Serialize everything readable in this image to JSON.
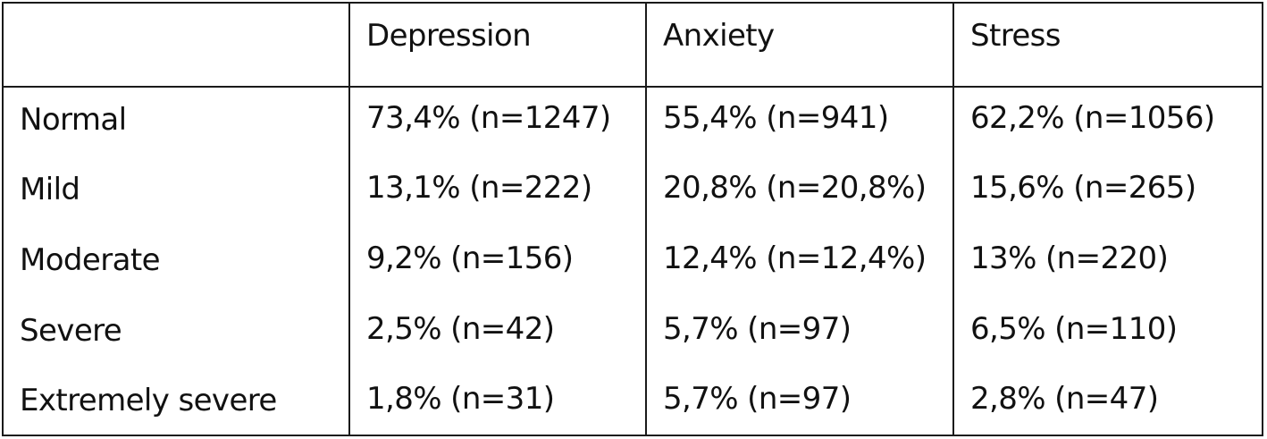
{
  "table": {
    "headers": [
      "",
      "Depression",
      "Anxiety",
      "Stress"
    ],
    "rows": [
      {
        "label": "Normal",
        "depression": "73,4% (n=1247)",
        "anxiety": "55,4% (n=941)",
        "stress": "62,2% (n=1056)"
      },
      {
        "label": "Mild",
        "depression": "13,1% (n=222)",
        "anxiety": "20,8% (n=20,8%)",
        "stress": "15,6% (n=265)"
      },
      {
        "label": "Moderate",
        "depression": "9,2% (n=156)",
        "anxiety": "12,4% (n=12,4%)",
        "stress": "13% (n=220)"
      },
      {
        "label": "Severe",
        "depression": "2,5% (n=42)",
        "anxiety": "5,7% (n=97)",
        "stress": "6,5% (n=110)"
      },
      {
        "label": "Extremely severe",
        "depression": "1,8% (n=31)",
        "anxiety": "5,7% (n=97)",
        "stress": "2,8% (n=47)"
      }
    ]
  }
}
